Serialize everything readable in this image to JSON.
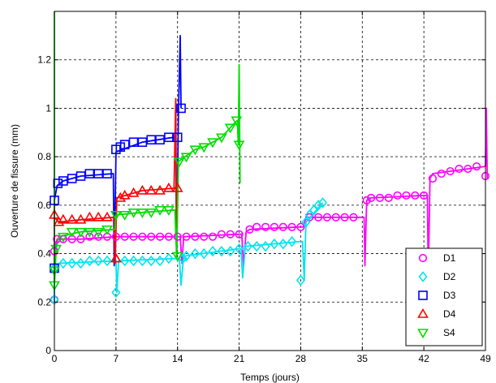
{
  "chart_data": {
    "type": "line",
    "title": "",
    "xlabel": "Temps (jours)",
    "ylabel": "Ouverture de fissure (mm)",
    "xlim": [
      0,
      49
    ],
    "ylim": [
      0,
      1.4
    ],
    "xticks": [
      0,
      7,
      14,
      21,
      28,
      35,
      42,
      49
    ],
    "yticks": [
      0,
      0.2,
      0.4,
      0.6,
      0.8,
      1,
      1.2
    ],
    "ytick_labels": [
      "0",
      "0.2",
      "0.4",
      "0.6",
      "0.8",
      "1",
      "1.2"
    ],
    "grid": true,
    "legend_position": "bottom-right",
    "series": [
      {
        "name": "D1",
        "color": "#ff00ff",
        "marker": "circle",
        "line": [
          [
            0,
            0.2
          ],
          [
            0,
            0.41
          ],
          [
            0.3,
            0.46
          ],
          [
            3,
            0.46
          ],
          [
            7,
            0.47
          ],
          [
            14,
            0.47
          ],
          [
            14.3,
            0.47
          ],
          [
            14.5,
            0.36
          ],
          [
            14.7,
            0.47
          ],
          [
            21,
            0.48
          ],
          [
            21.3,
            0.48
          ],
          [
            21.5,
            0.35
          ],
          [
            21.8,
            0.49
          ],
          [
            22.2,
            0.5
          ],
          [
            28,
            0.51
          ],
          [
            28.3,
            0.51
          ],
          [
            28.6,
            0.55
          ],
          [
            35,
            0.55
          ],
          [
            35.2,
            0.55
          ],
          [
            35.3,
            0.35
          ],
          [
            35.5,
            0.62
          ],
          [
            36,
            0.63
          ],
          [
            42,
            0.64
          ],
          [
            42.4,
            0.64
          ],
          [
            42.5,
            0.3
          ],
          [
            42.7,
            0.71
          ],
          [
            43,
            0.73
          ],
          [
            49,
            0.76
          ],
          [
            49.1,
            1.0
          ],
          [
            49.2,
            0.71
          ]
        ],
        "markers": [
          [
            0,
            0.21
          ],
          [
            0,
            0.41
          ],
          [
            0.3,
            0.46
          ],
          [
            1,
            0.46
          ],
          [
            2,
            0.46
          ],
          [
            3,
            0.46
          ],
          [
            4,
            0.47
          ],
          [
            5,
            0.47
          ],
          [
            6,
            0.47
          ],
          [
            7,
            0.47
          ],
          [
            8,
            0.47
          ],
          [
            9,
            0.47
          ],
          [
            10,
            0.47
          ],
          [
            11,
            0.47
          ],
          [
            12,
            0.47
          ],
          [
            13,
            0.47
          ],
          [
            14,
            0.47
          ],
          [
            15,
            0.47
          ],
          [
            16,
            0.47
          ],
          [
            17,
            0.47
          ],
          [
            18,
            0.47
          ],
          [
            19,
            0.48
          ],
          [
            20,
            0.48
          ],
          [
            21,
            0.48
          ],
          [
            22.2,
            0.5
          ],
          [
            23,
            0.51
          ],
          [
            24,
            0.51
          ],
          [
            25,
            0.51
          ],
          [
            26,
            0.51
          ],
          [
            27,
            0.51
          ],
          [
            28,
            0.51
          ],
          [
            29,
            0.55
          ],
          [
            30,
            0.55
          ],
          [
            31,
            0.55
          ],
          [
            32,
            0.55
          ],
          [
            33,
            0.55
          ],
          [
            34,
            0.55
          ],
          [
            35.5,
            0.62
          ],
          [
            36,
            0.63
          ],
          [
            37,
            0.63
          ],
          [
            38,
            0.63
          ],
          [
            39,
            0.64
          ],
          [
            40,
            0.64
          ],
          [
            41,
            0.64
          ],
          [
            42,
            0.64
          ],
          [
            43,
            0.71
          ],
          [
            44,
            0.73
          ],
          [
            45,
            0.74
          ],
          [
            46,
            0.75
          ],
          [
            47,
            0.75
          ],
          [
            48,
            0.76
          ],
          [
            49,
            0.72
          ]
        ]
      },
      {
        "name": "D2",
        "color": "#00e5ee",
        "marker": "diamond",
        "line": [
          [
            0,
            0.2
          ],
          [
            0,
            0.34
          ],
          [
            0.5,
            0.36
          ],
          [
            7,
            0.37
          ],
          [
            7.1,
            0.24
          ],
          [
            7.3,
            0.37
          ],
          [
            14,
            0.38
          ],
          [
            14.2,
            0.38
          ],
          [
            14.4,
            0.27
          ],
          [
            14.7,
            0.39
          ],
          [
            21,
            0.42
          ],
          [
            21.2,
            0.42
          ],
          [
            21.4,
            0.3
          ],
          [
            21.7,
            0.43
          ],
          [
            28,
            0.45
          ],
          [
            28.2,
            0.45
          ],
          [
            28.4,
            0.29
          ],
          [
            28.6,
            0.53
          ],
          [
            30.5,
            0.61
          ]
        ],
        "markers": [
          [
            0,
            0.21
          ],
          [
            0,
            0.34
          ],
          [
            1,
            0.36
          ],
          [
            2,
            0.36
          ],
          [
            3,
            0.36
          ],
          [
            4,
            0.37
          ],
          [
            5,
            0.37
          ],
          [
            6,
            0.37
          ],
          [
            7,
            0.24
          ],
          [
            8,
            0.37
          ],
          [
            9,
            0.37
          ],
          [
            10,
            0.37
          ],
          [
            11,
            0.37
          ],
          [
            12,
            0.37
          ],
          [
            13,
            0.38
          ],
          [
            14.6,
            0.38
          ],
          [
            15,
            0.39
          ],
          [
            16,
            0.4
          ],
          [
            17,
            0.4
          ],
          [
            18,
            0.41
          ],
          [
            19,
            0.41
          ],
          [
            20,
            0.41
          ],
          [
            21,
            0.42
          ],
          [
            22,
            0.43
          ],
          [
            23,
            0.43
          ],
          [
            24,
            0.43
          ],
          [
            25,
            0.44
          ],
          [
            26,
            0.44
          ],
          [
            27,
            0.45
          ],
          [
            28,
            0.29
          ],
          [
            28.6,
            0.53
          ],
          [
            29,
            0.56
          ],
          [
            29.5,
            0.58
          ],
          [
            30,
            0.6
          ],
          [
            30.5,
            0.61
          ]
        ]
      },
      {
        "name": "D3",
        "color": "#0000ff",
        "marker": "square",
        "line": [
          [
            0,
            0.33
          ],
          [
            0,
            0.62
          ],
          [
            0.3,
            0.68
          ],
          [
            1,
            0.7
          ],
          [
            3,
            0.72
          ],
          [
            6.7,
            0.73
          ],
          [
            6.8,
            0.35
          ],
          [
            7,
            0.82
          ],
          [
            10,
            0.86
          ],
          [
            13.5,
            0.88
          ],
          [
            13.8,
            0.88
          ],
          [
            13.9,
            0.38
          ],
          [
            14.1,
            0.98
          ],
          [
            14.3,
            1.3
          ],
          [
            14.4,
            1.0
          ]
        ],
        "markers": [
          [
            0,
            0.34
          ],
          [
            0,
            0.62
          ],
          [
            0.4,
            0.69
          ],
          [
            1,
            0.7
          ],
          [
            2,
            0.71
          ],
          [
            3,
            0.72
          ],
          [
            4,
            0.73
          ],
          [
            5,
            0.73
          ],
          [
            6,
            0.73
          ],
          [
            7,
            0.83
          ],
          [
            7.5,
            0.84
          ],
          [
            8,
            0.85
          ],
          [
            9,
            0.86
          ],
          [
            10,
            0.86
          ],
          [
            11,
            0.87
          ],
          [
            12,
            0.87
          ],
          [
            13,
            0.88
          ],
          [
            14,
            0.88
          ],
          [
            14.4,
            1.0
          ]
        ]
      },
      {
        "name": "D4",
        "color": "#ff0000",
        "marker": "triangle-up",
        "line": [
          [
            0,
            0.34
          ],
          [
            0,
            0.55
          ],
          [
            0.5,
            0.53
          ],
          [
            3,
            0.54
          ],
          [
            6.8,
            0.55
          ],
          [
            6.9,
            0.36
          ],
          [
            7.1,
            0.63
          ],
          [
            10,
            0.66
          ],
          [
            13.6,
            0.67
          ],
          [
            13.8,
            1.04
          ],
          [
            13.9,
            0.38
          ],
          [
            14,
            0.67
          ]
        ],
        "markers": [
          [
            0,
            0.56
          ],
          [
            0.5,
            0.53
          ],
          [
            1,
            0.54
          ],
          [
            2,
            0.54
          ],
          [
            3,
            0.54
          ],
          [
            4,
            0.55
          ],
          [
            5,
            0.55
          ],
          [
            6,
            0.55
          ],
          [
            7,
            0.38
          ],
          [
            7.5,
            0.63
          ],
          [
            8,
            0.64
          ],
          [
            9,
            0.65
          ],
          [
            10,
            0.66
          ],
          [
            11,
            0.66
          ],
          [
            12,
            0.66
          ],
          [
            13,
            0.67
          ],
          [
            14,
            0.67
          ]
        ]
      },
      {
        "name": "S4",
        "color": "#00dd00",
        "marker": "triangle-down",
        "line": [
          [
            0,
            1.4
          ],
          [
            0,
            0.27
          ],
          [
            0.2,
            0.42
          ],
          [
            0.5,
            0.47
          ],
          [
            3,
            0.49
          ],
          [
            6.9,
            0.5
          ],
          [
            7,
            0.56
          ],
          [
            10,
            0.57
          ],
          [
            13.7,
            0.58
          ],
          [
            13.9,
            0.38
          ],
          [
            14.1,
            0.78
          ],
          [
            16,
            0.83
          ],
          [
            17,
            0.84
          ],
          [
            19,
            0.88
          ],
          [
            20.5,
            0.94
          ],
          [
            20.8,
            0.95
          ],
          [
            20.9,
            0.85
          ],
          [
            21,
            1.18
          ],
          [
            21.1,
            0.69
          ]
        ],
        "markers": [
          [
            0,
            0.27
          ],
          [
            0,
            0.33
          ],
          [
            0.2,
            0.42
          ],
          [
            1,
            0.47
          ],
          [
            2,
            0.49
          ],
          [
            3,
            0.49
          ],
          [
            4,
            0.49
          ],
          [
            5,
            0.49
          ],
          [
            6,
            0.5
          ],
          [
            7,
            0.56
          ],
          [
            8,
            0.56
          ],
          [
            9,
            0.57
          ],
          [
            10,
            0.57
          ],
          [
            11,
            0.57
          ],
          [
            12,
            0.58
          ],
          [
            13,
            0.58
          ],
          [
            14,
            0.39
          ],
          [
            14.2,
            0.78
          ],
          [
            15,
            0.8
          ],
          [
            16,
            0.83
          ],
          [
            17,
            0.84
          ],
          [
            18,
            0.86
          ],
          [
            19,
            0.88
          ],
          [
            20,
            0.92
          ],
          [
            20.7,
            0.95
          ],
          [
            21,
            0.85
          ]
        ]
      }
    ]
  }
}
